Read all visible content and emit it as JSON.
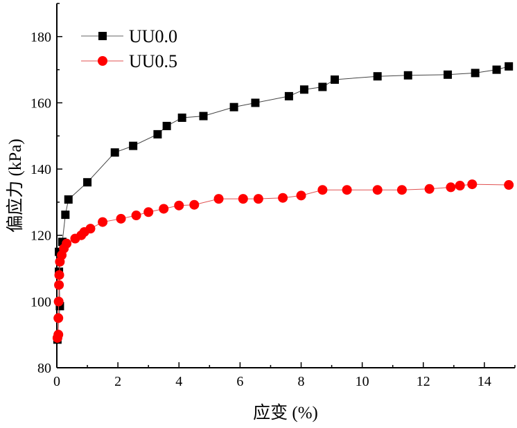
{
  "chart_data": {
    "type": "line",
    "title": "",
    "xlabel": "应变 (%)",
    "ylabel": "偏应力 (kPa)",
    "xlim": [
      0,
      15
    ],
    "ylim": [
      80,
      190
    ],
    "xticks": [
      0,
      2,
      4,
      6,
      8,
      10,
      12,
      14
    ],
    "yticks": [
      80,
      100,
      120,
      140,
      160,
      180
    ],
    "grid": false,
    "legend_position": "top-left",
    "series": [
      {
        "name": "UU0.0",
        "color": "#000000",
        "marker": "square",
        "x": [
          0.02,
          0.1,
          0.07,
          0.07,
          0.18,
          0.28,
          0.38,
          1.0,
          1.9,
          2.5,
          3.3,
          3.6,
          4.1,
          4.8,
          5.8,
          6.5,
          7.6,
          8.1,
          8.7,
          9.1,
          10.5,
          11.5,
          12.8,
          13.7,
          14.4,
          14.8
        ],
        "y": [
          88.5,
          98.6,
          109,
          115,
          118,
          126.2,
          130.8,
          136,
          145,
          147,
          150.5,
          153,
          155.5,
          156,
          158.7,
          160,
          162,
          164,
          164.8,
          167,
          168,
          168.3,
          168.5,
          169,
          170,
          171
        ]
      },
      {
        "name": "UU0.5",
        "color": "#ff0000",
        "marker": "circle",
        "x": [
          0.02,
          0.05,
          0.05,
          0.06,
          0.07,
          0.08,
          0.1,
          0.16,
          0.23,
          0.32,
          0.6,
          0.8,
          0.9,
          1.1,
          1.5,
          2.1,
          2.6,
          3.0,
          3.5,
          4.0,
          4.5,
          5.3,
          6.1,
          6.6,
          7.4,
          8.0,
          8.7,
          9.5,
          10.5,
          11.3,
          12.2,
          12.9,
          13.2,
          13.6,
          14.8
        ],
        "y": [
          89,
          90,
          95,
          100,
          105,
          108,
          112,
          114,
          116,
          117.5,
          119,
          120,
          121,
          122,
          124,
          125,
          126,
          127,
          128,
          129,
          129.2,
          131,
          131,
          131,
          131.3,
          132,
          133.7,
          133.7,
          133.7,
          133.7,
          134,
          134.5,
          135,
          135.4,
          135.2
        ]
      }
    ]
  }
}
